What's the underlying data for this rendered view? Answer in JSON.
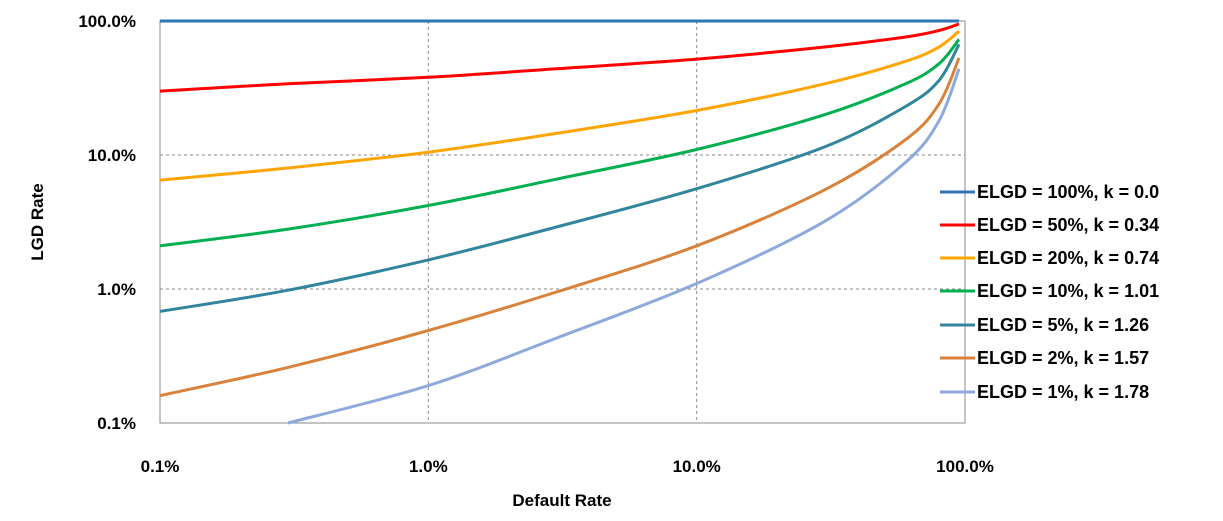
{
  "chart_data": {
    "type": "line",
    "title": "",
    "xlabel": "Default Rate",
    "ylabel": "LGD Rate",
    "x_scale": "log",
    "y_scale": "log",
    "xlim": [
      0.001,
      1.0
    ],
    "ylim": [
      0.001,
      1.0
    ],
    "x_ticks": [
      {
        "value": 0.001,
        "label": "0.1%"
      },
      {
        "value": 0.01,
        "label": "1.0%"
      },
      {
        "value": 0.1,
        "label": "10.0%"
      },
      {
        "value": 1.0,
        "label": "100.0%"
      }
    ],
    "y_ticks": [
      {
        "value": 0.001,
        "label": "0.1%"
      },
      {
        "value": 0.01,
        "label": "1.0%"
      },
      {
        "value": 0.1,
        "label": "10.0%"
      },
      {
        "value": 1.0,
        "label": "100.0%"
      }
    ],
    "grid": true,
    "legend_position": "right",
    "series": [
      {
        "name": "ELGD = 100%, k = 0.0",
        "color": "#2E75B6",
        "x": [
          0.001,
          0.003,
          0.01,
          0.03,
          0.1,
          0.3,
          0.6,
          0.8,
          0.95
        ],
        "y": [
          1.0,
          1.0,
          1.0,
          1.0,
          1.0,
          1.0,
          1.0,
          1.0,
          1.0
        ]
      },
      {
        "name": "ELGD = 50%, k = 0.34",
        "color": "#FF0000",
        "x": [
          0.001,
          0.003,
          0.01,
          0.03,
          0.1,
          0.3,
          0.6,
          0.8,
          0.95
        ],
        "y": [
          0.3,
          0.34,
          0.38,
          0.44,
          0.52,
          0.64,
          0.76,
          0.85,
          0.95
        ]
      },
      {
        "name": "ELGD = 20%, k = 0.74",
        "color": "#FFA500",
        "x": [
          0.001,
          0.003,
          0.01,
          0.03,
          0.1,
          0.3,
          0.6,
          0.8,
          0.95
        ],
        "y": [
          0.065,
          0.08,
          0.105,
          0.145,
          0.215,
          0.34,
          0.5,
          0.64,
          0.84
        ]
      },
      {
        "name": "ELGD = 10%, k = 1.01",
        "color": "#00B050",
        "x": [
          0.001,
          0.003,
          0.01,
          0.03,
          0.1,
          0.3,
          0.6,
          0.8,
          0.95
        ],
        "y": [
          0.021,
          0.028,
          0.042,
          0.066,
          0.11,
          0.2,
          0.34,
          0.48,
          0.73
        ]
      },
      {
        "name": "ELGD = 5%, k = 1.26",
        "color": "#31859C",
        "x": [
          0.001,
          0.003,
          0.01,
          0.03,
          0.1,
          0.3,
          0.6,
          0.8,
          0.95
        ],
        "y": [
          0.0068,
          0.0098,
          0.0165,
          0.029,
          0.056,
          0.115,
          0.23,
          0.36,
          0.67
        ]
      },
      {
        "name": "ELGD = 2%, k = 1.57",
        "color": "#D9823B",
        "x": [
          0.001,
          0.003,
          0.01,
          0.03,
          0.1,
          0.3,
          0.6,
          0.8,
          0.95
        ],
        "y": [
          0.0016,
          0.0026,
          0.0049,
          0.0095,
          0.021,
          0.055,
          0.13,
          0.24,
          0.53
        ]
      },
      {
        "name": "ELGD = 1%, k = 1.78",
        "color": "#8EA9DB",
        "x": [
          0.003,
          0.01,
          0.03,
          0.1,
          0.3,
          0.6,
          0.8,
          0.95
        ],
        "y": [
          0.001,
          0.0019,
          0.0043,
          0.011,
          0.032,
          0.088,
          0.18,
          0.44
        ]
      }
    ]
  }
}
